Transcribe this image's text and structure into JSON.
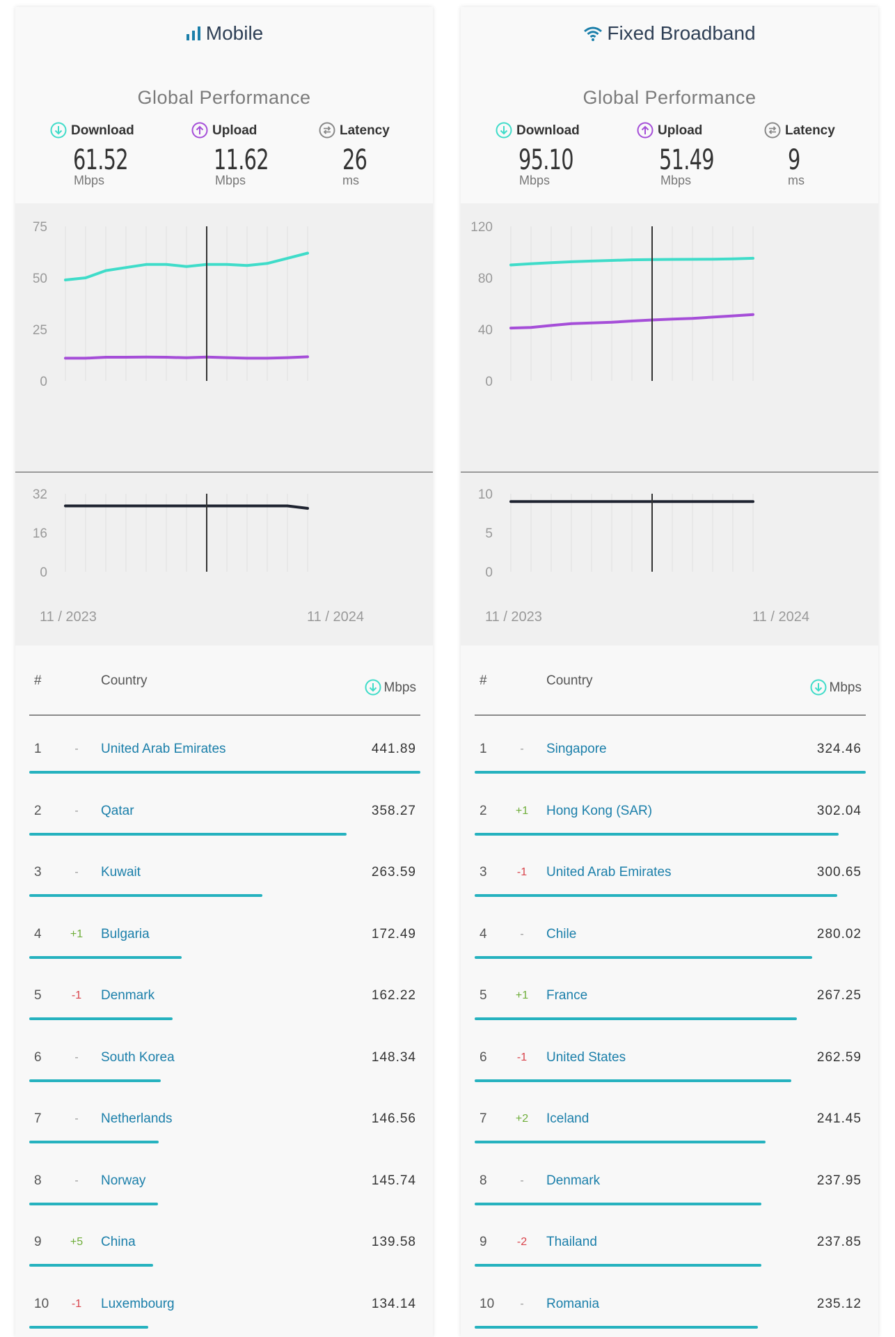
{
  "colors": {
    "download": "#3fdcc9",
    "upload": "#a54ed8",
    "latency": "#1e2330",
    "bar": "#26b2bf",
    "link": "#1b7faa"
  },
  "panels": [
    {
      "id": "mobile",
      "title": "Mobile",
      "title_icon": "signal-bars-icon",
      "subtitle": "Global Performance",
      "metrics": [
        {
          "label": "Download",
          "value": "61.52",
          "unit": "Mbps",
          "icon": "download-arrow-icon"
        },
        {
          "label": "Upload",
          "value": "11.62",
          "unit": "Mbps",
          "icon": "upload-arrow-icon"
        },
        {
          "label": "Latency",
          "value": "26",
          "unit": "ms",
          "icon": "latency-arrows-icon"
        }
      ],
      "table": {
        "headers": {
          "rank": "#",
          "country": "Country",
          "value": "Mbps"
        },
        "rows": [
          {
            "rank": "1",
            "change": "-",
            "country": "United Arab Emirates",
            "mbps": "441.89",
            "value": 441.89
          },
          {
            "rank": "2",
            "change": "-",
            "country": "Qatar",
            "mbps": "358.27",
            "value": 358.27
          },
          {
            "rank": "3",
            "change": "-",
            "country": "Kuwait",
            "mbps": "263.59",
            "value": 263.59
          },
          {
            "rank": "4",
            "change": "+1",
            "country": "Bulgaria",
            "mbps": "172.49",
            "value": 172.49
          },
          {
            "rank": "5",
            "change": "-1",
            "country": "Denmark",
            "mbps": "162.22",
            "value": 162.22
          },
          {
            "rank": "6",
            "change": "-",
            "country": "South Korea",
            "mbps": "148.34",
            "value": 148.34
          },
          {
            "rank": "7",
            "change": "-",
            "country": "Netherlands",
            "mbps": "146.56",
            "value": 146.56
          },
          {
            "rank": "8",
            "change": "-",
            "country": "Norway",
            "mbps": "145.74",
            "value": 145.74
          },
          {
            "rank": "9",
            "change": "+5",
            "country": "China",
            "mbps": "139.58",
            "value": 139.58
          },
          {
            "rank": "10",
            "change": "-1",
            "country": "Luxembourg",
            "mbps": "134.14",
            "value": 134.14
          }
        ]
      }
    },
    {
      "id": "fixed",
      "title": "Fixed Broadband",
      "title_icon": "wifi-icon",
      "subtitle": "Global Performance",
      "metrics": [
        {
          "label": "Download",
          "value": "95.10",
          "unit": "Mbps",
          "icon": "download-arrow-icon"
        },
        {
          "label": "Upload",
          "value": "51.49",
          "unit": "Mbps",
          "icon": "upload-arrow-icon"
        },
        {
          "label": "Latency",
          "value": "9",
          "unit": "ms",
          "icon": "latency-arrows-icon"
        }
      ],
      "table": {
        "headers": {
          "rank": "#",
          "country": "Country",
          "value": "Mbps"
        },
        "rows": [
          {
            "rank": "1",
            "change": "-",
            "country": "Singapore",
            "mbps": "324.46",
            "value": 324.46
          },
          {
            "rank": "2",
            "change": "+1",
            "country": "Hong Kong (SAR)",
            "mbps": "302.04",
            "value": 302.04
          },
          {
            "rank": "3",
            "change": "-1",
            "country": "United Arab Emirates",
            "mbps": "300.65",
            "value": 300.65
          },
          {
            "rank": "4",
            "change": "-",
            "country": "Chile",
            "mbps": "280.02",
            "value": 280.02
          },
          {
            "rank": "5",
            "change": "+1",
            "country": "France",
            "mbps": "267.25",
            "value": 267.25
          },
          {
            "rank": "6",
            "change": "-1",
            "country": "United States",
            "mbps": "262.59",
            "value": 262.59
          },
          {
            "rank": "7",
            "change": "+2",
            "country": "Iceland",
            "mbps": "241.45",
            "value": 241.45
          },
          {
            "rank": "8",
            "change": "-",
            "country": "Denmark",
            "mbps": "237.95",
            "value": 237.95
          },
          {
            "rank": "9",
            "change": "-2",
            "country": "Thailand",
            "mbps": "237.85",
            "value": 237.85
          },
          {
            "rank": "10",
            "change": "-",
            "country": "Romania",
            "mbps": "235.12",
            "value": 235.12
          }
        ]
      }
    }
  ],
  "chart_data": [
    {
      "type": "line",
      "x_start_label": "11 / 2023",
      "x_end_label": "11 / 2024",
      "ylim": [
        0,
        75
      ],
      "yticks": [
        "75",
        "50",
        "25",
        "0"
      ],
      "ytick_values": [
        75,
        50,
        25,
        0
      ],
      "cursor_index": 7,
      "series": [
        {
          "key": "download",
          "values": [
            49,
            50,
            53.5,
            55,
            56.5,
            56.5,
            55.5,
            56.5,
            56.5,
            56,
            57,
            59.5,
            62
          ]
        },
        {
          "key": "upload",
          "values": [
            11,
            11,
            11.5,
            11.5,
            11.6,
            11.5,
            11.2,
            11.6,
            11.3,
            11,
            11,
            11.3,
            11.7
          ]
        }
      ]
    },
    {
      "type": "line",
      "x_start_label": "11 / 2023",
      "x_end_label": "11 / 2024",
      "ylim": [
        0,
        32
      ],
      "yticks": [
        "32",
        "16",
        "0"
      ],
      "ytick_values": [
        32,
        16,
        0
      ],
      "cursor_index": 7,
      "series": [
        {
          "key": "latency",
          "values": [
            27,
            27,
            27,
            27,
            27,
            27,
            27,
            27,
            27,
            27,
            27,
            27,
            26
          ]
        }
      ]
    },
    {
      "type": "line",
      "x_start_label": "11 / 2023",
      "x_end_label": "11 / 2024",
      "ylim": [
        0,
        120
      ],
      "yticks": [
        "120",
        "80",
        "40",
        "0"
      ],
      "ytick_values": [
        120,
        80,
        40,
        0
      ],
      "cursor_index": 7,
      "series": [
        {
          "key": "download",
          "values": [
            90,
            91,
            91.8,
            92.5,
            93,
            93.5,
            94,
            94.2,
            94.3,
            94.4,
            94.5,
            94.7,
            95.2
          ]
        },
        {
          "key": "upload",
          "values": [
            41,
            41.5,
            43,
            44.5,
            45,
            45.5,
            46.5,
            47.3,
            48,
            48.5,
            49.5,
            50.5,
            51.5
          ]
        }
      ]
    },
    {
      "type": "line",
      "x_start_label": "11 / 2023",
      "x_end_label": "11 / 2024",
      "ylim": [
        0,
        10
      ],
      "yticks": [
        "10",
        "5",
        "0"
      ],
      "ytick_values": [
        10,
        5,
        0
      ],
      "cursor_index": 7,
      "series": [
        {
          "key": "latency",
          "values": [
            9,
            9,
            9,
            9,
            9,
            9,
            9,
            9,
            9,
            9,
            9,
            9,
            9
          ]
        }
      ]
    }
  ]
}
